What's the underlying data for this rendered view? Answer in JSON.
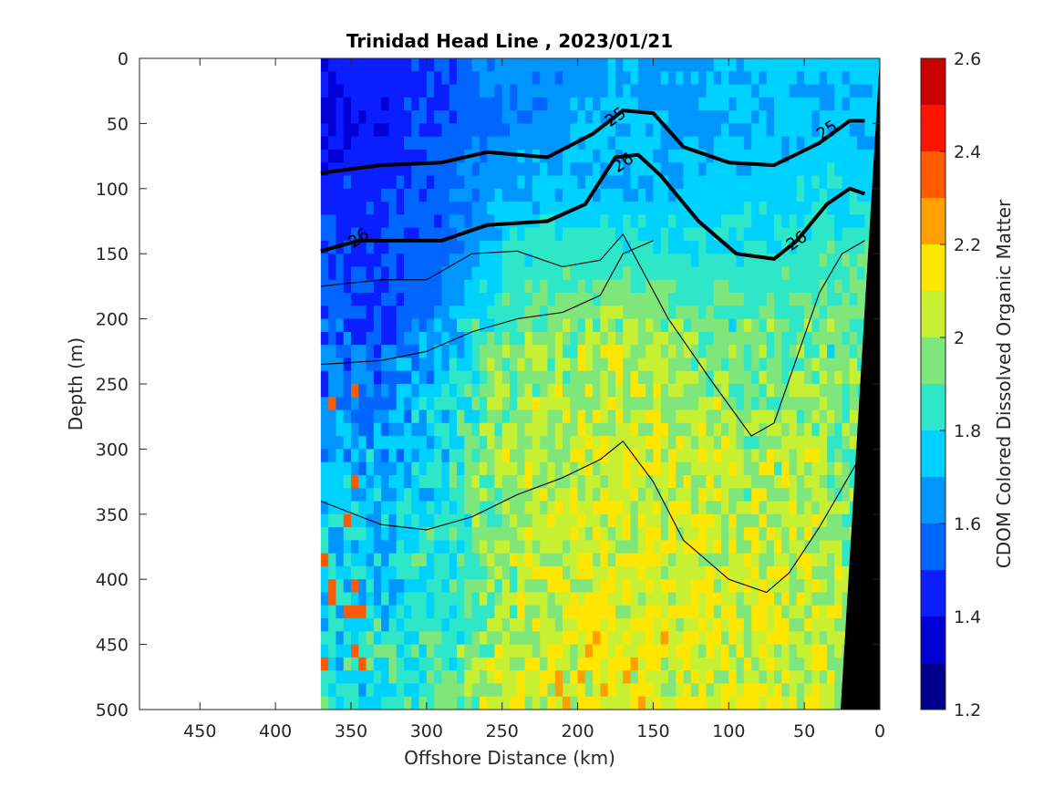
{
  "chart_data": {
    "type": "heatmap",
    "title": "Trinidad Head Line , 2023/01/21",
    "xlabel": "Offshore Distance (km)",
    "ylabel": "Depth (m)",
    "colorbar_label": "CDOM Colored Dissolved Organic Matter",
    "xlim": [
      490,
      0
    ],
    "ylim": [
      500,
      0
    ],
    "x_reversed": true,
    "y_reversed": true,
    "x_ticks": [
      "450",
      "400",
      "350",
      "300",
      "250",
      "200",
      "150",
      "100",
      "50",
      "0"
    ],
    "x_tick_values": [
      450,
      400,
      350,
      300,
      250,
      200,
      150,
      100,
      50,
      0
    ],
    "y_ticks": [
      "0",
      "50",
      "100",
      "150",
      "200",
      "250",
      "300",
      "350",
      "400",
      "450",
      "500"
    ],
    "y_tick_values": [
      0,
      50,
      100,
      150,
      200,
      250,
      300,
      350,
      400,
      450,
      500
    ],
    "colorbar_ticks": [
      "1.2",
      "1.4",
      "1.6",
      "1.8",
      "2",
      "2.2",
      "2.4",
      "2.6"
    ],
    "colorbar_tick_values": [
      1.2,
      1.4,
      1.6,
      1.8,
      2.0,
      2.2,
      2.4,
      2.6
    ],
    "color_levels": [
      1.2,
      1.3,
      1.4,
      1.5,
      1.6,
      1.7,
      1.8,
      1.9,
      2.0,
      2.1,
      2.2,
      2.3,
      2.4,
      2.5,
      2.6
    ],
    "colormap": [
      "#00008f",
      "#0000d6",
      "#0a1eff",
      "#0066ff",
      "#0096ff",
      "#00d2ff",
      "#2ee6c8",
      "#7ee67a",
      "#c8f032",
      "#ffe600",
      "#ffa000",
      "#ff5a00",
      "#ff1400",
      "#c80000"
    ],
    "data_x_range": [
      370,
      0
    ],
    "colored_field_description_grid": {
      "x_km": [
        370,
        330,
        290,
        250,
        210,
        170,
        130,
        90,
        50,
        10
      ],
      "depth_m": [
        0,
        50,
        100,
        150,
        200,
        250,
        300,
        350,
        400,
        450,
        500
      ],
      "cdom": [
        [
          1.45,
          1.45,
          1.5,
          1.62,
          1.65,
          1.68,
          1.65,
          1.72,
          1.75,
          1.72
        ],
        [
          1.35,
          1.42,
          1.5,
          1.6,
          1.65,
          1.72,
          1.68,
          1.7,
          1.72,
          1.72
        ],
        [
          1.45,
          1.5,
          1.55,
          1.68,
          1.72,
          1.72,
          1.72,
          1.75,
          1.78,
          1.75
        ],
        [
          1.5,
          1.48,
          1.55,
          1.78,
          1.85,
          1.85,
          1.8,
          1.82,
          1.85,
          1.88
        ],
        [
          1.55,
          1.5,
          1.65,
          1.9,
          1.95,
          2.0,
          1.92,
          1.88,
          1.9,
          1.9
        ],
        [
          1.6,
          1.6,
          1.75,
          1.95,
          2.0,
          2.05,
          2.0,
          1.95,
          1.95,
          1.92
        ],
        [
          1.68,
          1.68,
          1.78,
          2.0,
          2.05,
          2.08,
          2.05,
          2.0,
          2.0,
          1.95
        ],
        [
          1.72,
          1.72,
          1.82,
          2.0,
          2.05,
          2.08,
          2.05,
          2.02,
          2.05,
          1.95
        ],
        [
          1.75,
          1.75,
          1.85,
          1.98,
          2.08,
          2.08,
          2.08,
          2.05,
          2.05,
          1.98
        ],
        [
          1.78,
          1.8,
          1.85,
          2.02,
          2.08,
          2.1,
          2.08,
          2.05,
          2.05,
          2.0
        ],
        [
          1.8,
          1.82,
          1.88,
          2.05,
          2.1,
          2.1,
          2.08,
          2.08,
          2.05,
          2.0
        ]
      ]
    },
    "density_contours": [
      {
        "level": "25",
        "bold": true,
        "points": [
          [
            370,
            88
          ],
          [
            330,
            82
          ],
          [
            290,
            80
          ],
          [
            260,
            72
          ],
          [
            220,
            76
          ],
          [
            190,
            58
          ],
          [
            170,
            40
          ],
          [
            150,
            42
          ],
          [
            130,
            68
          ],
          [
            100,
            80
          ],
          [
            70,
            82
          ],
          [
            40,
            65
          ],
          [
            20,
            48
          ],
          [
            10,
            48
          ]
        ]
      },
      {
        "level": "26",
        "bold": true,
        "points": [
          [
            370,
            148
          ],
          [
            345,
            140
          ],
          [
            310,
            140
          ],
          [
            290,
            140
          ],
          [
            260,
            128
          ],
          [
            220,
            125
          ],
          [
            195,
            112
          ],
          [
            175,
            76
          ],
          [
            160,
            74
          ],
          [
            145,
            90
          ],
          [
            120,
            125
          ],
          [
            95,
            150
          ],
          [
            70,
            154
          ],
          [
            55,
            140
          ],
          [
            35,
            112
          ],
          [
            20,
            100
          ],
          [
            10,
            104
          ]
        ]
      },
      {
        "level": "",
        "bold": false,
        "points": [
          [
            370,
            175
          ],
          [
            330,
            170
          ],
          [
            300,
            170
          ],
          [
            270,
            150
          ],
          [
            240,
            148
          ],
          [
            210,
            160
          ],
          [
            185,
            155
          ],
          [
            170,
            135
          ],
          [
            140,
            200
          ],
          [
            110,
            250
          ],
          [
            85,
            290
          ],
          [
            70,
            280
          ],
          [
            55,
            230
          ],
          [
            40,
            180
          ],
          [
            25,
            150
          ],
          [
            10,
            140
          ]
        ]
      },
      {
        "level": "",
        "bold": false,
        "points": [
          [
            370,
            235
          ],
          [
            330,
            232
          ],
          [
            300,
            225
          ],
          [
            270,
            210
          ],
          [
            240,
            200
          ],
          [
            210,
            195
          ],
          [
            185,
            182
          ],
          [
            170,
            150
          ],
          [
            150,
            140
          ]
        ]
      },
      {
        "level": "",
        "bold": false,
        "points": [
          [
            370,
            340
          ],
          [
            330,
            358
          ],
          [
            300,
            362
          ],
          [
            270,
            352
          ],
          [
            240,
            335
          ],
          [
            210,
            322
          ],
          [
            185,
            308
          ],
          [
            170,
            294
          ],
          [
            150,
            325
          ],
          [
            130,
            370
          ],
          [
            100,
            400
          ],
          [
            75,
            410
          ],
          [
            60,
            395
          ],
          [
            40,
            360
          ],
          [
            15,
            310
          ]
        ]
      }
    ],
    "land_mask": "black"
  }
}
